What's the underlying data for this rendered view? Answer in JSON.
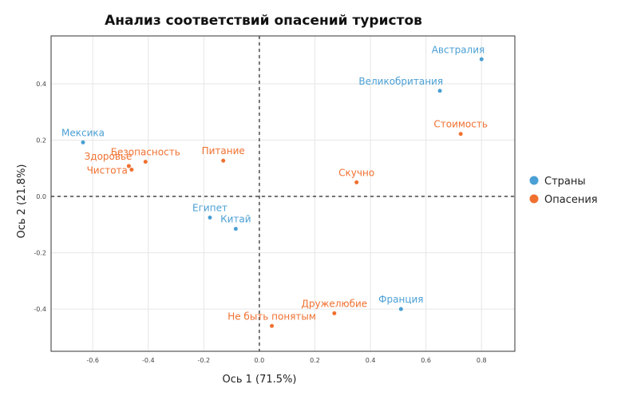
{
  "chart_data": {
    "type": "scatter",
    "title": "Анализ соответствий опасений туристов",
    "xlabel": "Ось 1 (71.5%)",
    "ylabel": "Ось 2 (21.8%)",
    "xlim": [
      -0.75,
      0.92
    ],
    "ylim": [
      -0.55,
      0.57
    ],
    "x_ticks": [
      -0.6,
      -0.4,
      -0.2,
      0.0,
      0.2,
      0.4,
      0.6,
      0.8
    ],
    "x_tick_labels": [
      "-0.6",
      "-0.4",
      "-0.2",
      "0.0",
      "0.2",
      "0.4",
      "0.6",
      "0.8"
    ],
    "y_ticks": [
      -0.4,
      -0.2,
      0.0,
      0.2,
      0.4
    ],
    "y_tick_labels": [
      "-0.4",
      "-0.2",
      "0.0",
      "0.2",
      "0.4"
    ],
    "grid": true,
    "reference_lines": [
      0,
      0
    ],
    "legend_position": "right",
    "series": [
      {
        "name": "Страны",
        "color": "#4a9fd4",
        "points": [
          {
            "label": "Австралия",
            "x": 0.8,
            "y": 0.487,
            "label_pos": "above-left"
          },
          {
            "label": "Великобритания",
            "x": 0.65,
            "y": 0.375,
            "label_pos": "above-left"
          },
          {
            "label": "Мексика",
            "x": -0.635,
            "y": 0.192,
            "label_pos": "above"
          },
          {
            "label": "Египет",
            "x": -0.178,
            "y": -0.075,
            "label_pos": "above"
          },
          {
            "label": "Китай",
            "x": -0.085,
            "y": -0.115,
            "label_pos": "above"
          },
          {
            "label": "Франция",
            "x": 0.51,
            "y": -0.4,
            "label_pos": "above"
          }
        ]
      },
      {
        "name": "Опасения",
        "color": "#f07030",
        "points": [
          {
            "label": "Стоимость",
            "x": 0.725,
            "y": 0.222,
            "label_pos": "above"
          },
          {
            "label": "Скучно",
            "x": 0.35,
            "y": 0.05,
            "label_pos": "above"
          },
          {
            "label": "Питание",
            "x": -0.13,
            "y": 0.127,
            "label_pos": "above"
          },
          {
            "label": "Безопасность",
            "x": -0.41,
            "y": 0.123,
            "label_pos": "above"
          },
          {
            "label": "Здоровье",
            "x": -0.47,
            "y": 0.108,
            "label_pos": "above-left"
          },
          {
            "label": "Чистота",
            "x": -0.46,
            "y": 0.095,
            "label_pos": "left"
          },
          {
            "label": "Дружелюбие",
            "x": 0.27,
            "y": -0.415,
            "label_pos": "above"
          },
          {
            "label": "Не быть понятым",
            "x": 0.045,
            "y": -0.46,
            "label_pos": "above"
          }
        ]
      }
    ]
  }
}
